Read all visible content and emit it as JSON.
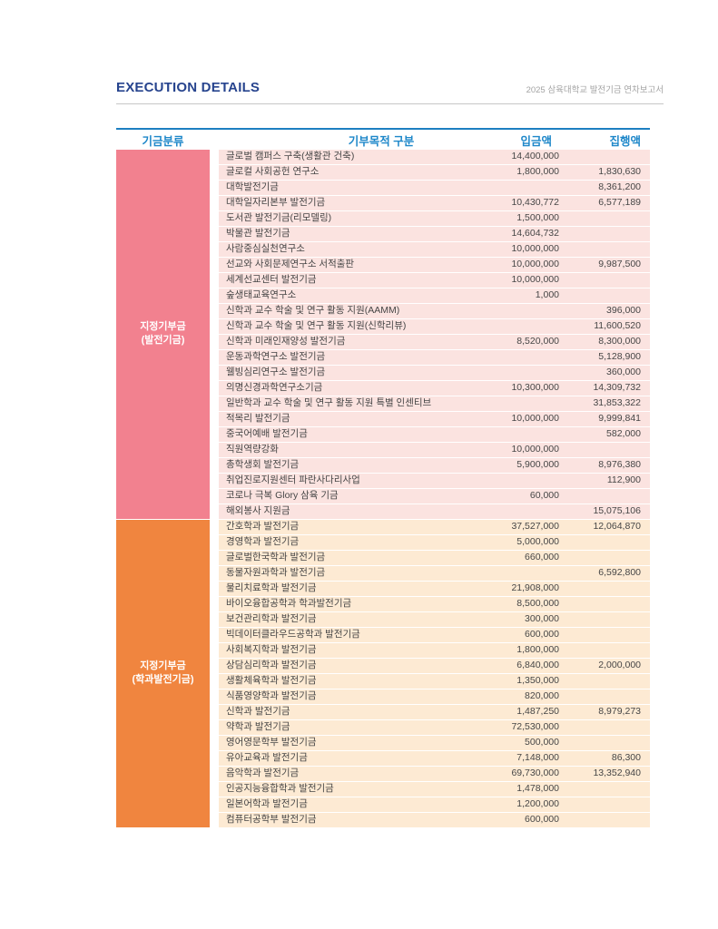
{
  "page": {
    "title": "EXECUTION DETAILS",
    "report_label": "2025 삼육대학교 발전기금 연차보고서"
  },
  "colors": {
    "accent_blue": "#1e87c9",
    "rule_blue": "#1d7fc1",
    "title_navy": "#27448e",
    "section1_block": "#f2818f",
    "section1_row_bg": "#fbe3e0",
    "section2_block": "#f0853f",
    "section2_row_bg": "#fdead3"
  },
  "table": {
    "headers": {
      "category": "기금분류",
      "purpose": "기부목적 구분",
      "deposit": "입금액",
      "execution": "집행액"
    },
    "sections": [
      {
        "category": "지정기부금",
        "category_sub": "(발전기금)",
        "block_color": "#f2818f",
        "row_bg": "#fbe3e0",
        "rows": [
          {
            "name": "글로벌 캠퍼스 구축(생활관 건축)",
            "deposit": "14,400,000",
            "execution": ""
          },
          {
            "name": "글로컬 사회공헌 연구소",
            "deposit": "1,800,000",
            "execution": "1,830,630"
          },
          {
            "name": "대학발전기금",
            "deposit": "",
            "execution": "8,361,200"
          },
          {
            "name": "대학일자리본부 발전기금",
            "deposit": "10,430,772",
            "execution": "6,577,189"
          },
          {
            "name": "도서관 발전기금(리모델링)",
            "deposit": "1,500,000",
            "execution": ""
          },
          {
            "name": "박물관 발전기금",
            "deposit": "14,604,732",
            "execution": ""
          },
          {
            "name": "사람중심실천연구소",
            "deposit": "10,000,000",
            "execution": ""
          },
          {
            "name": "선교와 사회문제연구소 서적출판",
            "deposit": "10,000,000",
            "execution": "9,987,500"
          },
          {
            "name": "세계선교센터 발전기금",
            "deposit": "10,000,000",
            "execution": ""
          },
          {
            "name": "숲생태교육연구소",
            "deposit": "1,000",
            "execution": ""
          },
          {
            "name": "신학과 교수 학술 및 연구 활동 지원(AAMM)",
            "deposit": "",
            "execution": "396,000"
          },
          {
            "name": "신학과 교수 학술 및 연구 활동 지원(신학리뷰)",
            "deposit": "",
            "execution": "11,600,520"
          },
          {
            "name": "신학과 미래인재양성 발전기금",
            "deposit": "8,520,000",
            "execution": "8,300,000"
          },
          {
            "name": "운동과학연구소 발전기금",
            "deposit": "",
            "execution": "5,128,900"
          },
          {
            "name": "웰빙심리연구소 발전기금",
            "deposit": "",
            "execution": "360,000"
          },
          {
            "name": "의명신경과학연구소기금",
            "deposit": "10,300,000",
            "execution": "14,309,732"
          },
          {
            "name": "일반학과 교수 학술 및 연구 활동 지원 특별 인센티브",
            "deposit": "",
            "execution": "31,853,322"
          },
          {
            "name": "적목리 발전기금",
            "deposit": "10,000,000",
            "execution": "9,999,841"
          },
          {
            "name": "중국어예배 발전기금",
            "deposit": "",
            "execution": "582,000"
          },
          {
            "name": "직원역량강화",
            "deposit": "10,000,000",
            "execution": ""
          },
          {
            "name": "총학생회 발전기금",
            "deposit": "5,900,000",
            "execution": "8,976,380"
          },
          {
            "name": "취업진로지원센터 파란사다리사업",
            "deposit": "",
            "execution": "112,900"
          },
          {
            "name": "코로나 극복 Glory 삼육 기금",
            "deposit": "60,000",
            "execution": ""
          },
          {
            "name": "해외봉사 지원금",
            "deposit": "",
            "execution": "15,075,106"
          }
        ]
      },
      {
        "category": "지정기부금",
        "category_sub": "(학과발전기금)",
        "block_color": "#f0853f",
        "row_bg": "#fdead3",
        "rows": [
          {
            "name": "간호학과 발전기금",
            "deposit": "37,527,000",
            "execution": "12,064,870"
          },
          {
            "name": "경영학과 발전기금",
            "deposit": "5,000,000",
            "execution": ""
          },
          {
            "name": "글로벌한국학과 발전기금",
            "deposit": "660,000",
            "execution": ""
          },
          {
            "name": "동물자원과학과 발전기금",
            "deposit": "",
            "execution": "6,592,800"
          },
          {
            "name": "물리치료학과 발전기금",
            "deposit": "21,908,000",
            "execution": ""
          },
          {
            "name": "바이오융합공학과 학과발전기금",
            "deposit": "8,500,000",
            "execution": ""
          },
          {
            "name": "보건관리학과 발전기금",
            "deposit": "300,000",
            "execution": ""
          },
          {
            "name": "빅데이터클라우드공학과 발전기금",
            "deposit": "600,000",
            "execution": ""
          },
          {
            "name": "사회복지학과 발전기금",
            "deposit": "1,800,000",
            "execution": ""
          },
          {
            "name": "상담심리학과 발전기금",
            "deposit": "6,840,000",
            "execution": "2,000,000"
          },
          {
            "name": "생활체육학과 발전기금",
            "deposit": "1,350,000",
            "execution": ""
          },
          {
            "name": "식품영양학과 발전기금",
            "deposit": "820,000",
            "execution": ""
          },
          {
            "name": "신학과 발전기금",
            "deposit": "1,487,250",
            "execution": "8,979,273"
          },
          {
            "name": "약학과 발전기금",
            "deposit": "72,530,000",
            "execution": ""
          },
          {
            "name": "영어영문학부 발전기금",
            "deposit": "500,000",
            "execution": ""
          },
          {
            "name": "유아교육과 발전기금",
            "deposit": "7,148,000",
            "execution": "86,300"
          },
          {
            "name": "음악학과 발전기금",
            "deposit": "69,730,000",
            "execution": "13,352,940"
          },
          {
            "name": "인공지능융합학과 발전기금",
            "deposit": "1,478,000",
            "execution": ""
          },
          {
            "name": "일본어학과 발전기금",
            "deposit": "1,200,000",
            "execution": ""
          },
          {
            "name": "컴퓨터공학부 발전기금",
            "deposit": "600,000",
            "execution": ""
          }
        ]
      }
    ]
  }
}
